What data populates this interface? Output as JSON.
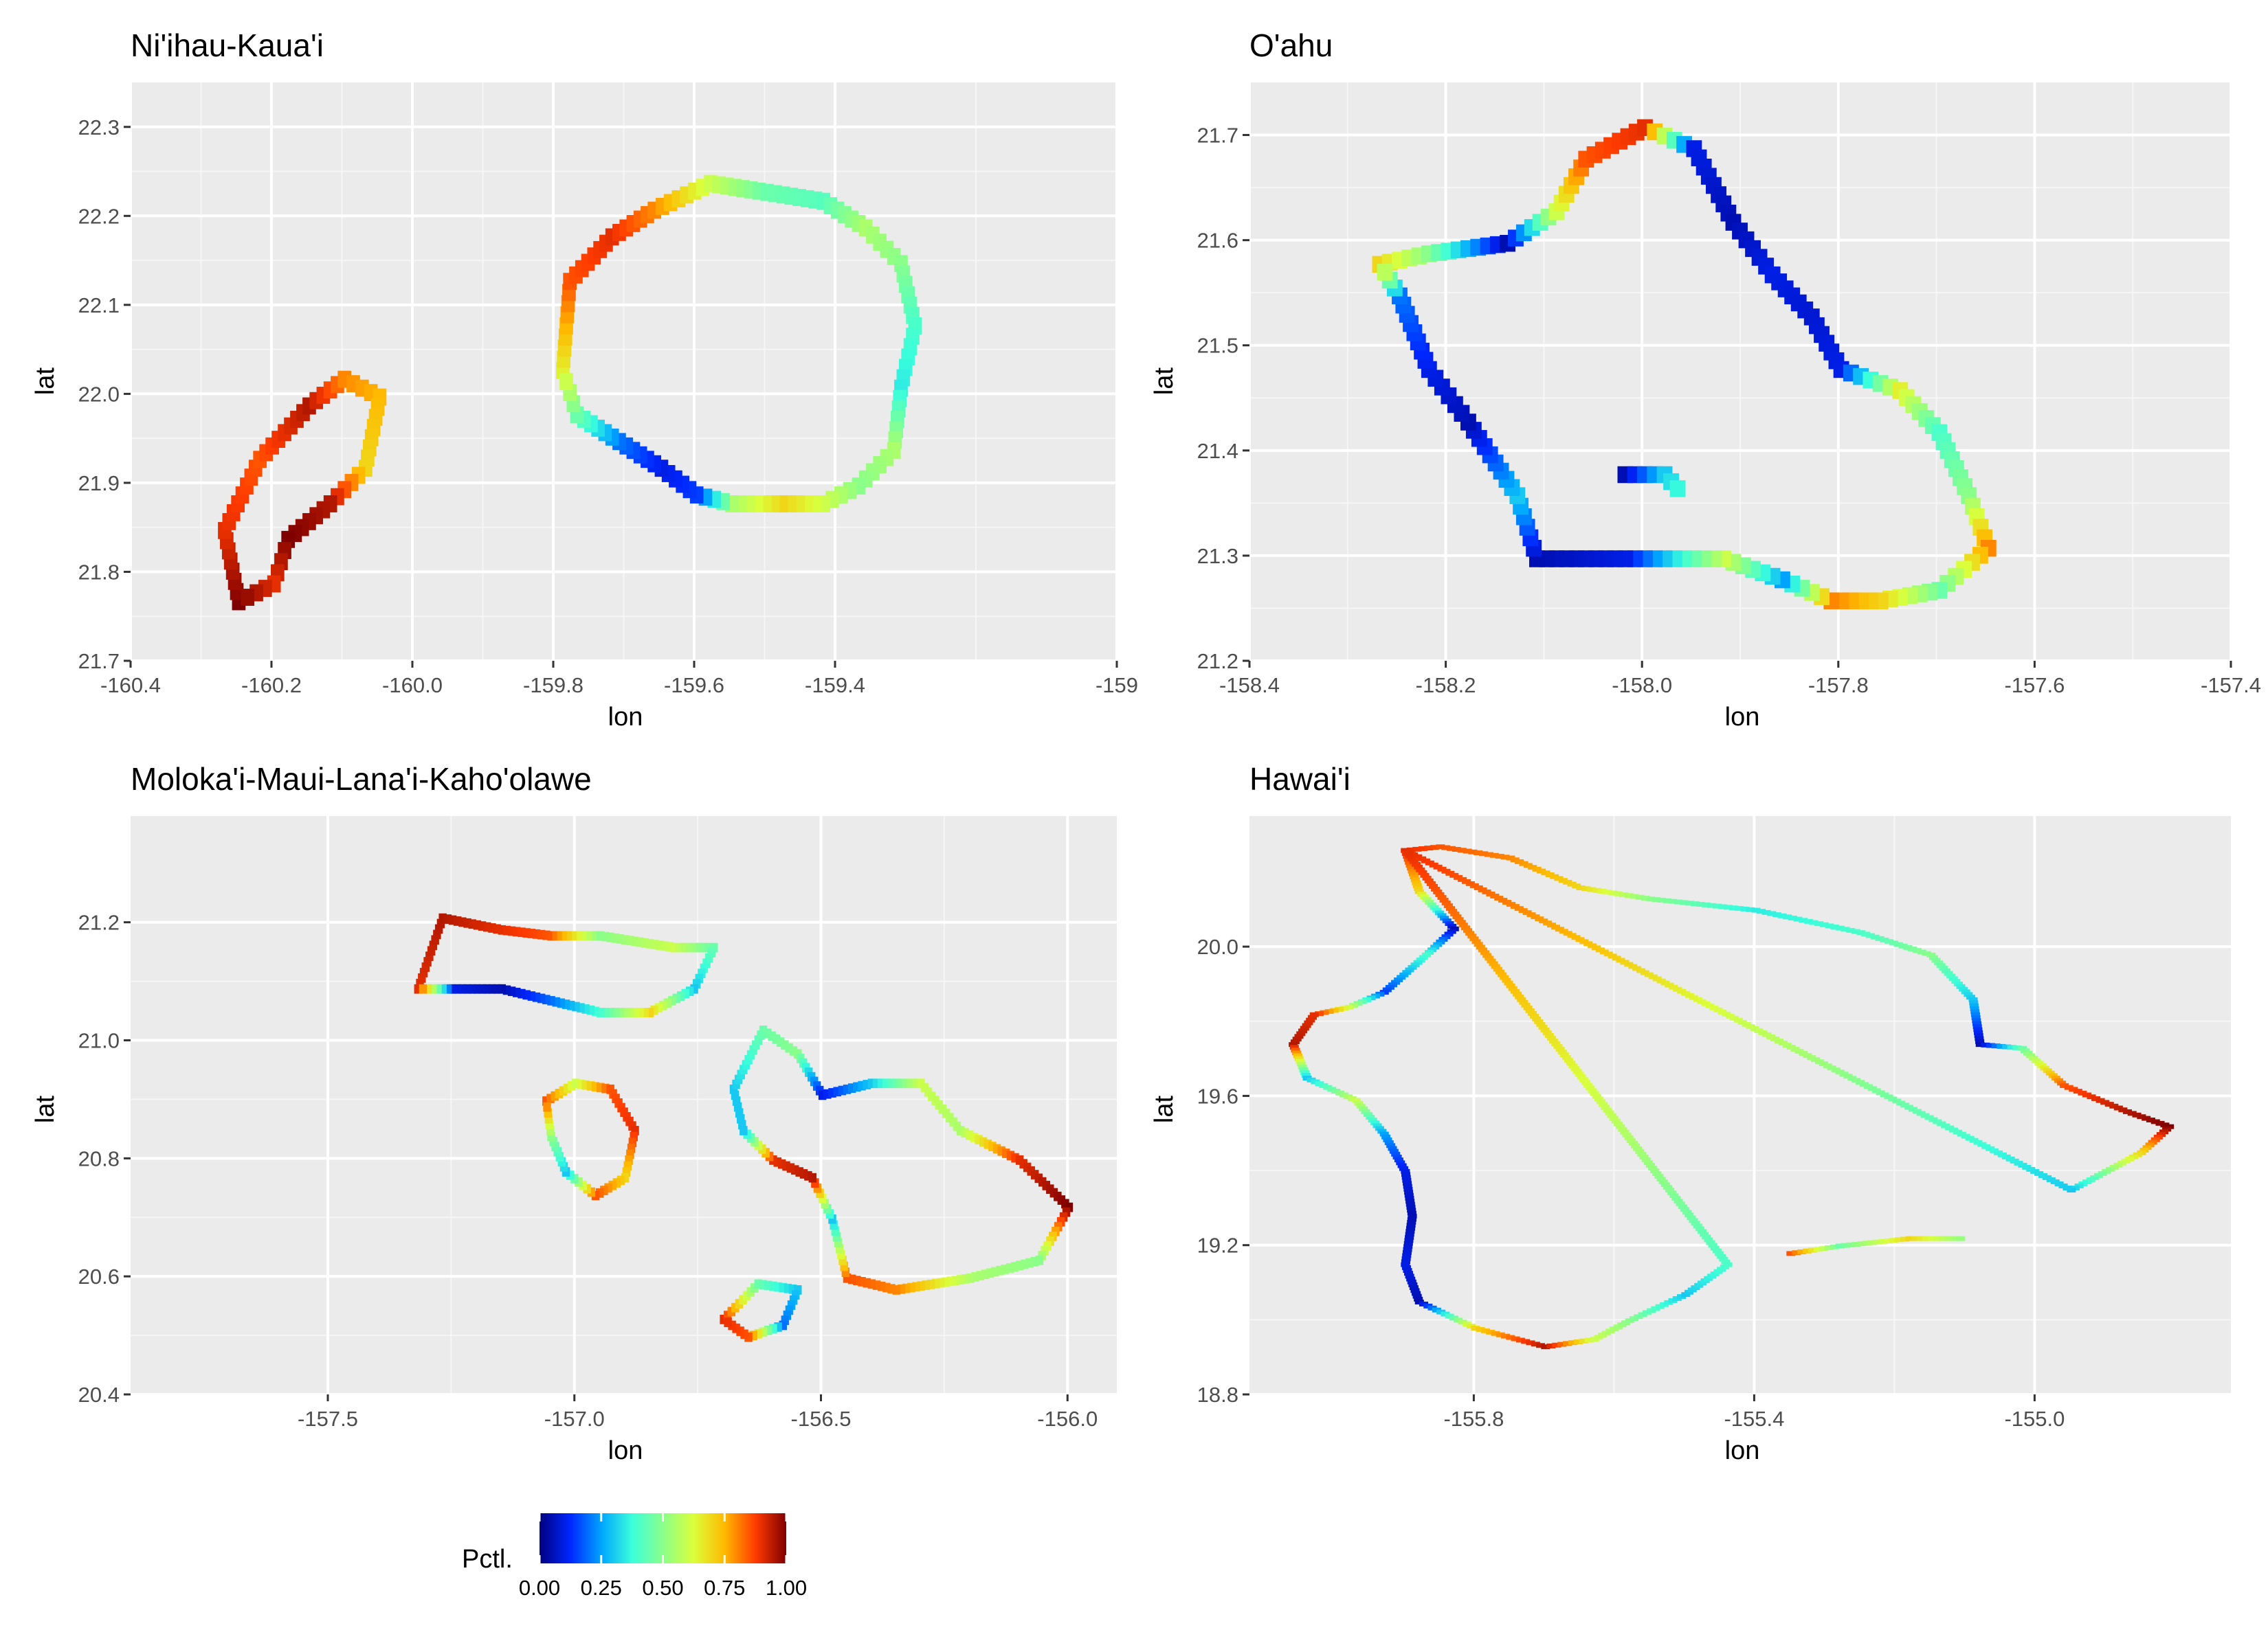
{
  "chart_data": [
    {
      "type": "heatmap",
      "title": "Ni'ihau-Kaua'i",
      "xlabel": "lon",
      "ylabel": "lat",
      "xlim": [
        -160.4,
        -159.0
      ],
      "ylim": [
        21.7,
        22.35
      ],
      "x_ticks": [
        -160.4,
        -160.2,
        -160.0,
        -159.8,
        -159.6,
        -159.4,
        -159.0
      ],
      "x_tick_labels": [
        "-160.4",
        "-160.2",
        "-160.0",
        "-159.8",
        "-159.6",
        "-159.4",
        "-159"
      ],
      "y_ticks": [
        21.7,
        21.8,
        21.9,
        22.0,
        22.1,
        22.2,
        22.3
      ],
      "y_tick_labels": [
        "21.7",
        "21.8",
        "21.9",
        "22.0",
        "22.1",
        "22.2",
        "22.3"
      ],
      "cell_size": 0.012,
      "shapes": [
        {
          "name": "Ni'ihau",
          "points": [
            [
              -160.25,
              21.77
            ],
            [
              -160.27,
              21.85
            ],
            [
              -160.22,
              21.93
            ],
            [
              -160.15,
              21.99
            ],
            [
              -160.1,
              22.02
            ],
            [
              -160.05,
              22.0
            ],
            [
              -160.07,
              21.92
            ],
            [
              -160.12,
              21.88
            ],
            [
              -160.18,
              21.84
            ],
            [
              -160.2,
              21.79
            ]
          ],
          "values": [
            1.0,
            0.9,
            0.85,
            0.95,
            0.8,
            0.75,
            0.7,
            0.95,
            1.0,
            0.9
          ]
        },
        {
          "name": "Kaua'i",
          "points": [
            [
              -159.79,
              22.03
            ],
            [
              -159.78,
              22.13
            ],
            [
              -159.72,
              22.18
            ],
            [
              -159.66,
              22.21
            ],
            [
              -159.58,
              22.24
            ],
            [
              -159.5,
              22.23
            ],
            [
              -159.42,
              22.22
            ],
            [
              -159.36,
              22.19
            ],
            [
              -159.31,
              22.15
            ],
            [
              -159.29,
              22.08
            ],
            [
              -159.31,
              22.01
            ],
            [
              -159.32,
              21.94
            ],
            [
              -159.37,
              21.9
            ],
            [
              -159.42,
              21.88
            ],
            [
              -159.48,
              21.88
            ],
            [
              -159.55,
              21.88
            ],
            [
              -159.6,
              21.89
            ],
            [
              -159.65,
              21.92
            ],
            [
              -159.71,
              21.95
            ],
            [
              -159.77,
              21.98
            ]
          ],
          "values": [
            0.65,
            0.85,
            0.9,
            0.8,
            0.6,
            0.45,
            0.42,
            0.55,
            0.5,
            0.4,
            0.35,
            0.55,
            0.5,
            0.6,
            0.7,
            0.55,
            0.15,
            0.1,
            0.2,
            0.45
          ]
        }
      ]
    },
    {
      "type": "heatmap",
      "title": "O'ahu",
      "xlabel": "lon",
      "ylabel": "lat",
      "xlim": [
        -158.4,
        -157.4
      ],
      "ylim": [
        21.2,
        21.75
      ],
      "x_ticks": [
        -158.4,
        -158.2,
        -158.0,
        -157.8,
        -157.6,
        -157.4
      ],
      "x_tick_labels": [
        "-158.4",
        "-158.2",
        "-158.0",
        "-157.8",
        "-157.6",
        "-157.4"
      ],
      "y_ticks": [
        21.2,
        21.3,
        21.4,
        21.5,
        21.6,
        21.7
      ],
      "y_tick_labels": [
        "21.2",
        "21.3",
        "21.4",
        "21.5",
        "21.6",
        "21.7"
      ],
      "cell_size": 0.01,
      "shapes": [
        {
          "name": "O'ahu",
          "points": [
            [
              -158.27,
              21.58
            ],
            [
              -158.22,
              21.59
            ],
            [
              -158.14,
              21.6
            ],
            [
              -158.09,
              21.63
            ],
            [
              -158.06,
              21.68
            ],
            [
              -158.0,
              21.71
            ],
            [
              -157.95,
              21.69
            ],
            [
              -157.91,
              21.62
            ],
            [
              -157.87,
              21.57
            ],
            [
              -157.83,
              21.53
            ],
            [
              -157.8,
              21.48
            ],
            [
              -157.74,
              21.46
            ],
            [
              -157.7,
              21.42
            ],
            [
              -157.67,
              21.36
            ],
            [
              -157.65,
              21.31
            ],
            [
              -157.7,
              21.27
            ],
            [
              -157.76,
              21.26
            ],
            [
              -157.81,
              21.26
            ],
            [
              -157.86,
              21.28
            ],
            [
              -157.92,
              21.3
            ],
            [
              -158.02,
              21.3
            ],
            [
              -158.11,
              21.3
            ],
            [
              -158.13,
              21.36
            ],
            [
              -158.18,
              21.43
            ],
            [
              -158.22,
              21.48
            ],
            [
              -158.25,
              21.55
            ]
          ],
          "values": [
            0.7,
            0.5,
            0.05,
            0.6,
            0.85,
            0.9,
            0.1,
            0.05,
            0.1,
            0.08,
            0.1,
            0.65,
            0.4,
            0.5,
            0.8,
            0.45,
            0.7,
            0.8,
            0.25,
            0.6,
            0.1,
            0.05,
            0.3,
            0.05,
            0.1,
            0.2
          ]
        },
        {
          "name": "O'ahu interior",
          "points": [
            [
              -158.02,
              21.38
            ],
            [
              -157.98,
              21.38
            ],
            [
              -157.96,
              21.36
            ]
          ],
          "values": [
            0.05,
            0.3,
            0.4
          ]
        }
      ]
    },
    {
      "type": "heatmap",
      "title": "Moloka'i-Maui-Lana'i-Kaho'olawe",
      "xlabel": "lon",
      "ylabel": "lat",
      "xlim": [
        -157.9,
        -155.9
      ],
      "ylim": [
        20.4,
        21.38
      ],
      "x_ticks": [
        -157.5,
        -157.0,
        -156.5,
        -156.0
      ],
      "x_tick_labels": [
        "-157.5",
        "-157.0",
        "-156.5",
        "-156.0"
      ],
      "y_ticks": [
        20.4,
        20.6,
        20.8,
        21.0,
        21.2
      ],
      "y_tick_labels": [
        "20.4",
        "20.6",
        "20.8",
        "21.0",
        "21.2"
      ],
      "cell_size": 0.01,
      "shapes": [
        {
          "name": "Moloka'i",
          "points": [
            [
              -157.32,
              21.09
            ],
            [
              -157.27,
              21.21
            ],
            [
              -157.15,
              21.19
            ],
            [
              -157.05,
              21.18
            ],
            [
              -156.95,
              21.18
            ],
            [
              -156.8,
              21.16
            ],
            [
              -156.72,
              21.16
            ],
            [
              -156.76,
              21.09
            ],
            [
              -156.85,
              21.05
            ],
            [
              -156.95,
              21.05
            ],
            [
              -157.05,
              21.07
            ],
            [
              -157.15,
              21.09
            ],
            [
              -157.25,
              21.09
            ]
          ],
          "values": [
            0.9,
            0.95,
            0.9,
            0.85,
            0.5,
            0.6,
            0.45,
            0.3,
            0.7,
            0.4,
            0.2,
            0.05,
            0.1
          ]
        },
        {
          "name": "Lana'i",
          "points": [
            [
              -157.06,
              20.9
            ],
            [
              -157.0,
              20.93
            ],
            [
              -156.93,
              20.92
            ],
            [
              -156.88,
              20.85
            ],
            [
              -156.9,
              20.77
            ],
            [
              -156.96,
              20.74
            ],
            [
              -157.02,
              20.78
            ],
            [
              -157.05,
              20.84
            ]
          ],
          "values": [
            0.85,
            0.6,
            0.85,
            0.9,
            0.7,
            0.85,
            0.3,
            0.5
          ]
        },
        {
          "name": "Maui",
          "points": [
            [
              -156.68,
              20.92
            ],
            [
              -156.62,
              21.02
            ],
            [
              -156.55,
              20.98
            ],
            [
              -156.5,
              20.91
            ],
            [
              -156.4,
              20.93
            ],
            [
              -156.3,
              20.93
            ],
            [
              -156.22,
              20.85
            ],
            [
              -156.1,
              20.8
            ],
            [
              -156.0,
              20.72
            ],
            [
              -156.06,
              20.63
            ],
            [
              -156.2,
              20.6
            ],
            [
              -156.35,
              20.58
            ],
            [
              -156.45,
              20.6
            ],
            [
              -156.48,
              20.7
            ],
            [
              -156.52,
              20.77
            ],
            [
              -156.6,
              20.8
            ],
            [
              -156.66,
              20.85
            ]
          ],
          "values": [
            0.3,
            0.45,
            0.5,
            0.1,
            0.3,
            0.6,
            0.55,
            0.9,
            1.0,
            0.5,
            0.55,
            0.8,
            0.85,
            0.3,
            0.95,
            0.9,
            0.3
          ]
        },
        {
          "name": "Kaho'olawe",
          "points": [
            [
              -156.7,
              20.53
            ],
            [
              -156.63,
              20.59
            ],
            [
              -156.55,
              20.58
            ],
            [
              -156.58,
              20.52
            ],
            [
              -156.65,
              20.5
            ]
          ],
          "values": [
            0.9,
            0.45,
            0.3,
            0.2,
            0.85
          ]
        }
      ]
    },
    {
      "type": "heatmap",
      "title": "Hawai'i",
      "xlabel": "lon",
      "ylabel": "lat",
      "xlim": [
        -156.12,
        -154.72
      ],
      "ylim": [
        18.8,
        20.35
      ],
      "x_ticks": [
        -155.8,
        -155.4,
        -155.0
      ],
      "x_tick_labels": [
        "-155.8",
        "-155.4",
        "-155.0"
      ],
      "y_ticks": [
        18.8,
        19.2,
        19.6,
        20.0
      ],
      "y_tick_labels": [
        "18.8",
        "19.2",
        "19.6",
        "20.0"
      ],
      "cell_size": 0.008,
      "shapes": [
        {
          "name": "Hawai'i",
          "points": [
            [
              -155.9,
              20.26
            ],
            [
              -155.85,
              20.27
            ],
            [
              -155.75,
              20.24
            ],
            [
              -155.65,
              20.16
            ],
            [
              -155.55,
              20.13
            ],
            [
              -155.4,
              20.1
            ],
            [
              -155.25,
              20.04
            ],
            [
              -155.15,
              19.98
            ],
            [
              -155.09,
              19.86
            ],
            [
              -155.08,
              19.74
            ],
            [
              -155.02,
              19.73
            ],
            [
              -154.96,
              19.63
            ],
            [
              -154.87,
              19.56
            ],
            [
              -154.81,
              19.52
            ],
            [
              -154.85,
              19.45
            ],
            [
              -154.95,
              19.35
            ]
          ],
          "values": [
            0.9,
            0.85,
            0.8,
            0.7,
            0.5,
            0.35,
            0.4,
            0.5,
            0.3,
            0.05,
            0.45,
            0.85,
            0.95,
            1.0,
            0.7,
            0.3
          ]
        },
        {
          "name": "Hawai'i west",
          "points": [
            [
              -155.9,
              20.26
            ],
            [
              -155.88,
              20.15
            ],
            [
              -155.83,
              20.05
            ],
            [
              -155.87,
              19.98
            ],
            [
              -155.93,
              19.88
            ],
            [
              -155.98,
              19.84
            ],
            [
              -156.03,
              19.82
            ],
            [
              -156.06,
              19.74
            ],
            [
              -156.04,
              19.65
            ],
            [
              -155.97,
              19.59
            ],
            [
              -155.93,
              19.5
            ],
            [
              -155.9,
              19.4
            ],
            [
              -155.89,
              19.28
            ],
            [
              -155.9,
              19.15
            ],
            [
              -155.88,
              19.05
            ],
            [
              -155.8,
              18.98
            ],
            [
              -155.7,
              18.93
            ],
            [
              -155.63,
              18.95
            ],
            [
              -155.58,
              19.0
            ],
            [
              -155.5,
              19.07
            ],
            [
              -155.44,
              19.15
            ]
          ],
          "values": [
            0.9,
            0.7,
            0.05,
            0.4,
            0.15,
            0.6,
            0.9,
            0.95,
            0.3,
            0.6,
            0.25,
            0.1,
            0.05,
            0.1,
            0.05,
            0.7,
            0.95,
            0.6,
            0.5,
            0.3,
            0.4
          ]
        },
        {
          "name": "Hawai'i south",
          "points": [
            [
              -155.35,
              19.18
            ],
            [
              -155.28,
              19.2
            ],
            [
              -155.18,
              19.22
            ],
            [
              -155.1,
              19.22
            ]
          ],
          "values": [
            0.85,
            0.45,
            0.7,
            0.5
          ]
        }
      ]
    }
  ],
  "legend": {
    "title": "Pctl.",
    "tick_labels": [
      "0.00",
      "0.25",
      "0.50",
      "0.75",
      "1.00"
    ],
    "colors": [
      "#00007f",
      "#0026ff",
      "#00a4ff",
      "#3bffdb",
      "#8aff8a",
      "#dbff3b",
      "#ffb900",
      "#ff3b00",
      "#7f0000"
    ]
  },
  "colors": {
    "panel_bg": "#ebebeb",
    "grid_major": "#ffffff"
  }
}
